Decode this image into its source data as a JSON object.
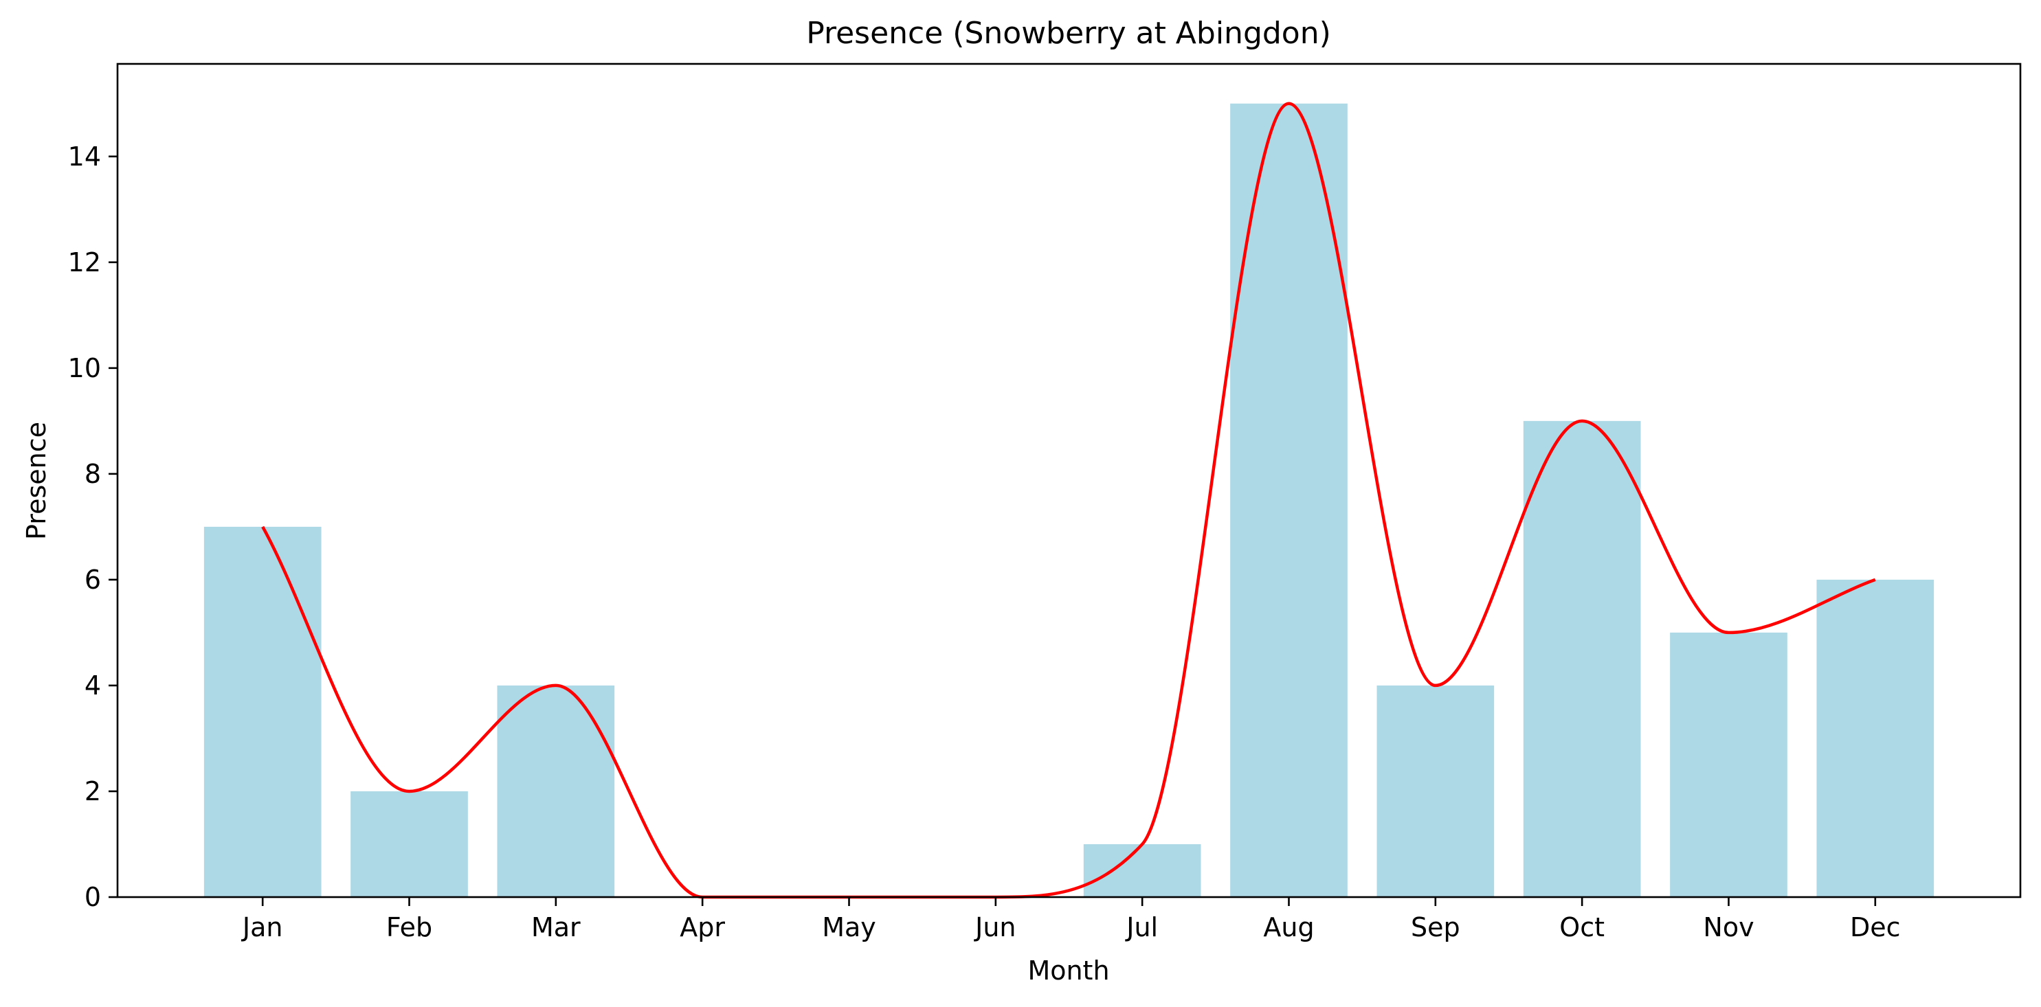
{
  "chart_data": {
    "type": "bar",
    "title": "Presence (Snowberry at Abingdon)",
    "xlabel": "Month",
    "ylabel": "Presence",
    "categories": [
      "Jan",
      "Feb",
      "Mar",
      "Apr",
      "May",
      "Jun",
      "Jul",
      "Aug",
      "Sep",
      "Oct",
      "Nov",
      "Dec"
    ],
    "series": [
      {
        "type": "bar",
        "values": [
          7,
          2,
          4,
          0,
          0,
          0,
          1,
          15,
          4,
          9,
          5,
          6
        ],
        "color": "#add8e6"
      },
      {
        "type": "line",
        "smooth": true,
        "values": [
          7,
          2,
          4,
          0,
          0,
          0,
          1,
          15,
          4,
          9,
          5,
          6
        ],
        "color": "#ff0000"
      }
    ],
    "ylim": [
      0,
      15.75
    ],
    "yticks": [
      0,
      2,
      4,
      6,
      8,
      10,
      12,
      14
    ],
    "grid": false,
    "legend": "none"
  }
}
